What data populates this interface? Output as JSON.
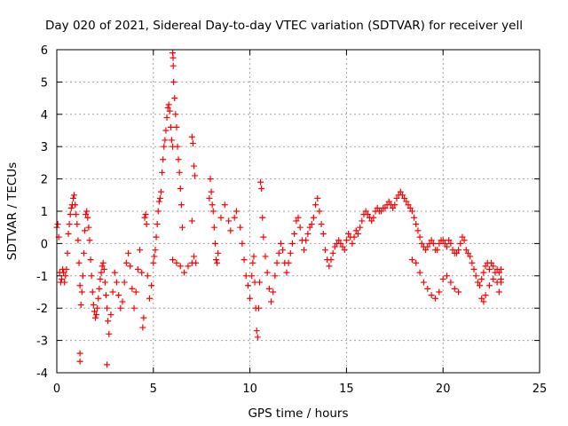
{
  "chart_data": {
    "type": "scatter",
    "title": "Day 020 of 2021, Sidereal Day-to-day VTEC variation (SDTVAR) for receiver yell",
    "xlabel": "GPS time / hours",
    "ylabel": "SDTVAR / TECUs",
    "xlim": [
      0,
      25
    ],
    "ylim": [
      -4,
      6
    ],
    "xticks": [
      0,
      5,
      10,
      15,
      20,
      25
    ],
    "yticks": [
      -4,
      -3,
      -2,
      -1,
      0,
      1,
      2,
      3,
      4,
      5,
      6
    ],
    "grid": true,
    "marker": "+",
    "marker_color": "#ff0000",
    "series": [
      {
        "name": "SDTVAR",
        "points": [
          [
            0.0,
            0.5
          ],
          [
            0.05,
            0.6
          ],
          [
            0.1,
            0.2
          ],
          [
            0.15,
            -0.9
          ],
          [
            0.2,
            -1.2
          ],
          [
            0.25,
            -1.1
          ],
          [
            0.3,
            -0.8
          ],
          [
            0.35,
            -0.9
          ],
          [
            0.4,
            -1.2
          ],
          [
            0.45,
            -1.0
          ],
          [
            0.5,
            -0.8
          ],
          [
            0.55,
            -0.3
          ],
          [
            0.6,
            0.3
          ],
          [
            0.65,
            0.6
          ],
          [
            0.7,
            0.9
          ],
          [
            0.75,
            1.1
          ],
          [
            0.8,
            1.2
          ],
          [
            0.85,
            1.4
          ],
          [
            0.9,
            1.5
          ],
          [
            0.95,
            1.2
          ],
          [
            1.0,
            0.9
          ],
          [
            1.05,
            0.6
          ],
          [
            1.1,
            0.1
          ],
          [
            1.15,
            -0.6
          ],
          [
            1.2,
            -1.3
          ],
          [
            1.25,
            -1.9
          ],
          [
            1.2,
            -3.4
          ],
          [
            1.2,
            -3.65
          ],
          [
            1.3,
            -1.5
          ],
          [
            1.35,
            -1.0
          ],
          [
            1.4,
            -0.3
          ],
          [
            1.45,
            0.4
          ],
          [
            1.5,
            0.9
          ],
          [
            1.55,
            1.0
          ],
          [
            1.6,
            0.8
          ],
          [
            1.65,
            0.5
          ],
          [
            1.7,
            0.1
          ],
          [
            1.75,
            -0.5
          ],
          [
            1.8,
            -1.0
          ],
          [
            1.85,
            -1.5
          ],
          [
            1.9,
            -1.9
          ],
          [
            1.95,
            -2.1
          ],
          [
            2.0,
            -2.3
          ],
          [
            2.05,
            -2.2
          ],
          [
            2.1,
            -2.0
          ],
          [
            2.15,
            -1.7
          ],
          [
            2.2,
            -1.4
          ],
          [
            2.25,
            -1.1
          ],
          [
            2.3,
            -0.9
          ],
          [
            2.35,
            -0.7
          ],
          [
            2.4,
            -0.6
          ],
          [
            2.45,
            -0.8
          ],
          [
            2.5,
            -1.2
          ],
          [
            2.55,
            -1.6
          ],
          [
            2.6,
            -2.0
          ],
          [
            2.65,
            -2.4
          ],
          [
            2.7,
            -2.8
          ],
          [
            2.6,
            -3.75
          ],
          [
            2.8,
            -2.2
          ],
          [
            2.9,
            -1.5
          ],
          [
            3.0,
            -0.9
          ],
          [
            3.1,
            -1.2
          ],
          [
            3.2,
            -1.6
          ],
          [
            3.3,
            -2.0
          ],
          [
            3.4,
            -1.8
          ],
          [
            3.5,
            -1.2
          ],
          [
            3.6,
            -0.6
          ],
          [
            3.7,
            -0.3
          ],
          [
            3.8,
            -0.7
          ],
          [
            3.9,
            -1.4
          ],
          [
            4.0,
            -2.0
          ],
          [
            4.1,
            -1.5
          ],
          [
            4.2,
            -0.8
          ],
          [
            4.3,
            -0.2
          ],
          [
            4.4,
            -0.9
          ],
          [
            4.5,
            -2.3
          ],
          [
            4.45,
            -2.6
          ],
          [
            4.55,
            0.8
          ],
          [
            4.6,
            0.9
          ],
          [
            4.65,
            0.6
          ],
          [
            4.7,
            -1.0
          ],
          [
            4.8,
            -1.7
          ],
          [
            4.9,
            -1.3
          ],
          [
            5.0,
            -0.6
          ],
          [
            5.05,
            -0.4
          ],
          [
            5.1,
            -0.2
          ],
          [
            5.15,
            0.2
          ],
          [
            5.2,
            0.6
          ],
          [
            5.25,
            1.0
          ],
          [
            5.3,
            1.3
          ],
          [
            5.35,
            1.4
          ],
          [
            5.4,
            1.6
          ],
          [
            5.45,
            2.2
          ],
          [
            5.5,
            2.6
          ],
          [
            5.55,
            3.0
          ],
          [
            5.6,
            3.2
          ],
          [
            5.65,
            3.5
          ],
          [
            5.7,
            3.9
          ],
          [
            5.75,
            4.2
          ],
          [
            5.8,
            4.3
          ],
          [
            5.85,
            4.1
          ],
          [
            5.9,
            3.6
          ],
          [
            5.95,
            3.2
          ],
          [
            6.0,
            3.0
          ],
          [
            6.0,
            5.9
          ],
          [
            6.02,
            5.75
          ],
          [
            6.03,
            5.5
          ],
          [
            6.05,
            5.0
          ],
          [
            6.1,
            4.5
          ],
          [
            6.15,
            4.0
          ],
          [
            6.2,
            3.6
          ],
          [
            6.25,
            3.0
          ],
          [
            6.3,
            2.6
          ],
          [
            6.35,
            2.2
          ],
          [
            6.4,
            1.7
          ],
          [
            6.45,
            1.2
          ],
          [
            6.5,
            0.5
          ],
          [
            6.0,
            -0.5
          ],
          [
            6.2,
            -0.6
          ],
          [
            6.4,
            -0.7
          ],
          [
            6.6,
            -0.9
          ],
          [
            6.8,
            -0.7
          ],
          [
            7.0,
            -0.6
          ],
          [
            7.1,
            -0.4
          ],
          [
            7.2,
            -0.6
          ],
          [
            7.0,
            3.3
          ],
          [
            7.05,
            3.1
          ],
          [
            7.1,
            2.4
          ],
          [
            7.15,
            2.1
          ],
          [
            7.0,
            0.7
          ],
          [
            7.9,
            1.4
          ],
          [
            7.95,
            2.0
          ],
          [
            8.0,
            1.6
          ],
          [
            8.05,
            1.2
          ],
          [
            8.1,
            1.0
          ],
          [
            8.15,
            0.5
          ],
          [
            8.2,
            0.0
          ],
          [
            8.25,
            -0.5
          ],
          [
            8.3,
            -0.6
          ],
          [
            8.35,
            -0.3
          ],
          [
            8.5,
            0.8
          ],
          [
            8.7,
            1.2
          ],
          [
            8.9,
            0.7
          ],
          [
            9.0,
            0.4
          ],
          [
            9.2,
            0.8
          ],
          [
            9.3,
            1.0
          ],
          [
            9.5,
            0.5
          ],
          [
            9.6,
            0.0
          ],
          [
            9.7,
            -0.5
          ],
          [
            9.8,
            -1.0
          ],
          [
            9.9,
            -1.3
          ],
          [
            10.0,
            -1.7
          ],
          [
            10.1,
            -1.0
          ],
          [
            10.15,
            -0.6
          ],
          [
            10.2,
            -0.4
          ],
          [
            10.25,
            -1.2
          ],
          [
            10.3,
            -2.0
          ],
          [
            10.35,
            -2.7
          ],
          [
            10.4,
            -2.9
          ],
          [
            10.45,
            -2.0
          ],
          [
            10.5,
            -1.2
          ],
          [
            10.55,
            1.9
          ],
          [
            10.6,
            1.7
          ],
          [
            10.65,
            0.8
          ],
          [
            10.7,
            0.2
          ],
          [
            10.8,
            -0.4
          ],
          [
            10.9,
            -0.9
          ],
          [
            11.0,
            -1.4
          ],
          [
            11.1,
            -1.8
          ],
          [
            11.2,
            -1.5
          ],
          [
            11.3,
            -1.0
          ],
          [
            11.4,
            -0.6
          ],
          [
            11.5,
            -0.3
          ],
          [
            11.6,
            0.0
          ],
          [
            11.7,
            -0.2
          ],
          [
            11.8,
            -0.6
          ],
          [
            11.9,
            -0.9
          ],
          [
            12.0,
            -0.6
          ],
          [
            12.1,
            -0.3
          ],
          [
            12.2,
            0.0
          ],
          [
            12.3,
            0.3
          ],
          [
            12.4,
            0.7
          ],
          [
            12.5,
            0.8
          ],
          [
            12.6,
            0.5
          ],
          [
            12.7,
            0.1
          ],
          [
            12.8,
            -0.2
          ],
          [
            12.9,
            0.1
          ],
          [
            13.0,
            0.3
          ],
          [
            13.1,
            0.5
          ],
          [
            13.2,
            0.6
          ],
          [
            13.3,
            0.8
          ],
          [
            13.4,
            1.2
          ],
          [
            13.5,
            1.4
          ],
          [
            13.6,
            1.0
          ],
          [
            13.7,
            0.6
          ],
          [
            13.8,
            0.3
          ],
          [
            13.9,
            -0.2
          ],
          [
            14.0,
            -0.5
          ],
          [
            14.1,
            -0.7
          ],
          [
            14.2,
            -0.5
          ],
          [
            14.3,
            -0.3
          ],
          [
            14.4,
            -0.1
          ],
          [
            14.5,
            0.0
          ],
          [
            14.6,
            0.1
          ],
          [
            14.7,
            0.0
          ],
          [
            14.8,
            -0.1
          ],
          [
            14.9,
            -0.2
          ],
          [
            15.0,
            0.1
          ],
          [
            15.1,
            0.3
          ],
          [
            15.2,
            0.2
          ],
          [
            15.3,
            0.0
          ],
          [
            15.4,
            0.2
          ],
          [
            15.5,
            0.4
          ],
          [
            15.6,
            0.3
          ],
          [
            15.7,
            0.5
          ],
          [
            15.8,
            0.7
          ],
          [
            15.9,
            0.9
          ],
          [
            16.0,
            1.0
          ],
          [
            16.1,
            0.9
          ],
          [
            16.2,
            0.8
          ],
          [
            16.3,
            0.7
          ],
          [
            16.4,
            0.8
          ],
          [
            16.5,
            1.0
          ],
          [
            16.6,
            1.1
          ],
          [
            16.7,
            1.0
          ],
          [
            16.8,
            1.0
          ],
          [
            16.9,
            1.1
          ],
          [
            17.0,
            1.1
          ],
          [
            17.1,
            1.2
          ],
          [
            17.2,
            1.3
          ],
          [
            17.3,
            1.2
          ],
          [
            17.4,
            1.1
          ],
          [
            17.5,
            1.2
          ],
          [
            17.6,
            1.4
          ],
          [
            17.7,
            1.5
          ],
          [
            17.8,
            1.6
          ],
          [
            17.9,
            1.5
          ],
          [
            18.0,
            1.4
          ],
          [
            18.1,
            1.3
          ],
          [
            18.2,
            1.2
          ],
          [
            18.3,
            1.1
          ],
          [
            18.4,
            1.0
          ],
          [
            18.5,
            0.8
          ],
          [
            18.6,
            0.6
          ],
          [
            18.7,
            0.4
          ],
          [
            18.8,
            0.2
          ],
          [
            18.9,
            0.0
          ],
          [
            19.0,
            -0.1
          ],
          [
            19.1,
            -0.2
          ],
          [
            19.2,
            -0.1
          ],
          [
            19.3,
            0.0
          ],
          [
            19.4,
            0.1
          ],
          [
            19.5,
            0.0
          ],
          [
            19.6,
            -0.2
          ],
          [
            19.7,
            -0.2
          ],
          [
            19.8,
            0.0
          ],
          [
            19.9,
            0.1
          ],
          [
            20.0,
            0.1
          ],
          [
            20.1,
            0.0
          ],
          [
            20.2,
            -0.1
          ],
          [
            20.3,
            0.1
          ],
          [
            20.4,
            0.0
          ],
          [
            20.5,
            -0.2
          ],
          [
            20.6,
            -0.3
          ],
          [
            20.7,
            -0.3
          ],
          [
            20.8,
            -0.2
          ],
          [
            20.9,
            0.0
          ],
          [
            21.0,
            0.2
          ],
          [
            21.1,
            0.1
          ],
          [
            21.2,
            -0.2
          ],
          [
            21.3,
            -0.3
          ],
          [
            21.4,
            -0.4
          ],
          [
            21.5,
            -0.6
          ],
          [
            21.6,
            -0.8
          ],
          [
            21.7,
            -1.0
          ],
          [
            21.8,
            -1.2
          ],
          [
            21.9,
            -1.3
          ],
          [
            22.0,
            -1.1
          ],
          [
            22.1,
            -0.9
          ],
          [
            22.2,
            -0.7
          ],
          [
            22.3,
            -0.6
          ],
          [
            22.4,
            -0.8
          ],
          [
            22.5,
            -0.6
          ],
          [
            22.6,
            -0.7
          ],
          [
            22.7,
            -0.9
          ],
          [
            22.8,
            -0.8
          ],
          [
            22.9,
            -0.9
          ],
          [
            18.4,
            -0.5
          ],
          [
            18.6,
            -0.6
          ],
          [
            18.8,
            -0.9
          ],
          [
            19.0,
            -1.2
          ],
          [
            19.2,
            -1.4
          ],
          [
            19.4,
            -1.6
          ],
          [
            19.6,
            -1.7
          ],
          [
            19.8,
            -1.5
          ],
          [
            20.0,
            -1.1
          ],
          [
            20.2,
            -1.0
          ],
          [
            20.4,
            -1.2
          ],
          [
            20.6,
            -1.4
          ],
          [
            20.8,
            -1.5
          ],
          [
            22.0,
            -1.7
          ],
          [
            22.1,
            -1.8
          ],
          [
            22.2,
            -1.6
          ],
          [
            22.4,
            -1.3
          ],
          [
            22.6,
            -1.1
          ],
          [
            22.8,
            -1.2
          ],
          [
            22.9,
            -1.5
          ],
          [
            23.0,
            -1.2
          ],
          [
            23.0,
            -0.8
          ],
          [
            23.0,
            -1.1
          ]
        ]
      }
    ]
  }
}
